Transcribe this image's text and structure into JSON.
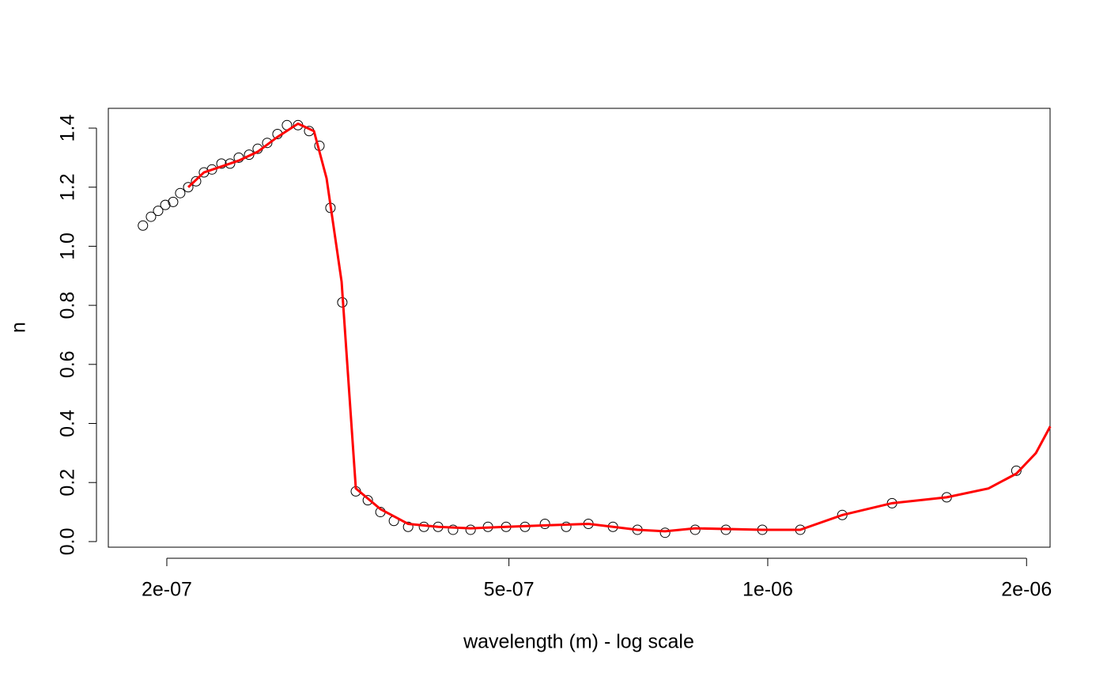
{
  "chart_data": {
    "type": "scatter",
    "x_label": "wavelength (m) - log scale",
    "y_label": "n",
    "x_log": true,
    "xlim": [
      1.71e-07,
      2.13e-06
    ],
    "ylim": [
      -0.019,
      1.467
    ],
    "xticks": [
      {
        "value": 2e-07,
        "label": "2e-07"
      },
      {
        "value": 5e-07,
        "label": "5e-07"
      },
      {
        "value": 1e-06,
        "label": "1e-06"
      },
      {
        "value": 2e-06,
        "label": "2e-06"
      }
    ],
    "yticks": [
      {
        "value": 0,
        "label": "0.0"
      },
      0.2,
      0.4,
      0.6,
      0.8,
      {
        "value": 1,
        "label": "1.0"
      },
      1.2,
      1.4
    ],
    "series": [
      {
        "style": "points",
        "color": "#000000",
        "x": [
          1.876e-07,
          1.917e-07,
          1.954e-07,
          1.992e-07,
          2.034e-07,
          2.073e-07,
          2.118e-07,
          2.163e-07,
          2.209e-07,
          2.257e-07,
          2.315e-07,
          2.369e-07,
          2.425e-07,
          2.493e-07,
          2.551e-07,
          2.617e-07,
          2.69e-07,
          2.759e-07,
          2.842e-07,
          2.928e-07,
          3.01e-07,
          3.1e-07,
          3.2e-07,
          3.318e-07,
          3.426e-07,
          3.544e-07,
          3.674e-07,
          3.817e-07,
          3.982e-07,
          4.136e-07,
          4.305e-07,
          4.512e-07,
          4.727e-07,
          4.962e-07,
          5.22e-07,
          5.506e-07,
          5.829e-07,
          6.186e-07,
          6.606e-07,
          7.054e-07,
          7.596e-07,
          8.234e-07,
          8.94e-07,
          9.856e-07,
          1.091e-06,
          1.221e-06,
          1.395e-06,
          1.615e-06,
          1.946e-06
        ],
        "values": [
          1.07,
          1.1,
          1.12,
          1.14,
          1.15,
          1.18,
          1.2,
          1.22,
          1.25,
          1.26,
          1.28,
          1.28,
          1.3,
          1.31,
          1.33,
          1.35,
          1.38,
          1.41,
          1.41,
          1.39,
          1.34,
          1.13,
          0.81,
          0.17,
          0.14,
          0.1,
          0.07,
          0.05,
          0.05,
          0.05,
          0.04,
          0.04,
          0.05,
          0.05,
          0.05,
          0.06,
          0.05,
          0.06,
          0.05,
          0.04,
          0.03,
          0.04,
          0.04,
          0.04,
          0.04,
          0.09,
          0.13,
          0.15,
          0.24
        ]
      },
      {
        "style": "line",
        "color": "#ff0000",
        "x": [
          2.118e-07,
          2.209e-07,
          2.315e-07,
          2.425e-07,
          2.551e-07,
          2.69e-07,
          2.842e-07,
          2.966e-07,
          3.068e-07,
          3.194e-07,
          3.318e-07,
          3.544e-07,
          3.817e-07,
          4.136e-07,
          4.512e-07,
          4.962e-07,
          5.506e-07,
          6.186e-07,
          7.054e-07,
          7.596e-07,
          8.234e-07,
          9.856e-07,
          1.091e-06,
          1.221e-06,
          1.395e-06,
          1.615e-06,
          1.806e-06,
          1.946e-06,
          2.051e-06,
          2.131e-06
        ],
        "values": [
          1.2,
          1.25,
          1.27,
          1.29,
          1.32,
          1.37,
          1.415,
          1.39,
          1.23,
          0.88,
          0.18,
          0.11,
          0.06,
          0.05,
          0.045,
          0.05,
          0.055,
          0.06,
          0.04,
          0.035,
          0.045,
          0.04,
          0.04,
          0.09,
          0.13,
          0.15,
          0.18,
          0.23,
          0.3,
          0.39
        ]
      }
    ]
  }
}
